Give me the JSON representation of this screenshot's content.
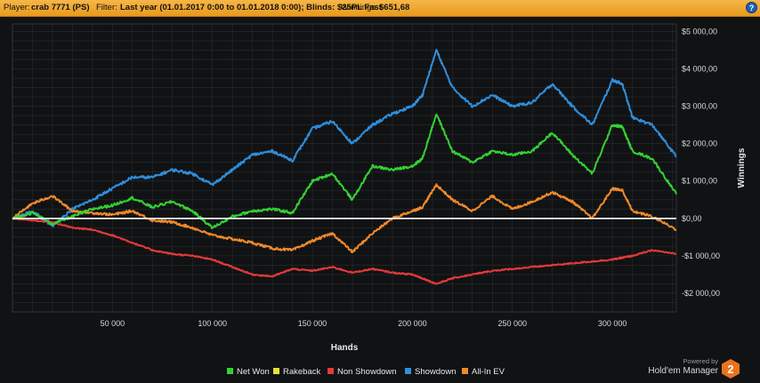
{
  "header": {
    "player_label": "Player:",
    "player_value": "crab 7771 (PS)",
    "filter_label": "Filter:",
    "filter_value": "Last year (01.01.2017 0:00 to 01.01.2018 0:00); Blinds: $25PL Fast",
    "winnings_label": "Winnings:",
    "winnings_value": "$651,68",
    "help_label": "?"
  },
  "branding": {
    "powered_by": "Powered by",
    "product": "Hold'em Manager",
    "logo_digit": "2"
  },
  "colors": {
    "background": "#111214",
    "grid": "#2a2c30",
    "zero_line": "#ffffff",
    "net_won": "#33d233",
    "rakeback": "#e8e033",
    "non_showdown": "#e53a3a",
    "showdown": "#2f8fdc",
    "all_in_ev": "#f08a2a"
  },
  "chart_data": {
    "type": "line",
    "xlabel": "Hands",
    "ylabel": "Winnings",
    "xlim": [
      0,
      332000
    ],
    "ylim": [
      -2500,
      5200
    ],
    "x_ticks": [
      50000,
      100000,
      150000,
      200000,
      250000,
      300000
    ],
    "x_tick_labels": [
      "50 000",
      "100 000",
      "150 000",
      "200 000",
      "250 000",
      "300 000"
    ],
    "y_ticks": [
      -2000,
      -1000,
      0,
      1000,
      2000,
      3000,
      4000,
      5000
    ],
    "y_tick_labels": [
      "-$2 000,00",
      "-$1 000,00",
      "$0,00",
      "$1 000,00",
      "$2 000,00",
      "$3 000,00",
      "$4 000,00",
      "$5 000,00"
    ],
    "grid": true,
    "legend_position": "bottom-center",
    "x": [
      0,
      10000,
      20000,
      30000,
      40000,
      50000,
      60000,
      70000,
      80000,
      90000,
      100000,
      110000,
      120000,
      130000,
      140000,
      150000,
      160000,
      170000,
      180000,
      190000,
      200000,
      205000,
      212000,
      220000,
      230000,
      240000,
      250000,
      260000,
      270000,
      280000,
      290000,
      300000,
      305000,
      310000,
      320000,
      332000
    ],
    "series": [
      {
        "name": "Net Won",
        "color_key": "net_won",
        "values": [
          0,
          150,
          -150,
          50,
          250,
          350,
          550,
          300,
          450,
          200,
          -250,
          50,
          200,
          250,
          150,
          1000,
          1200,
          500,
          1400,
          1300,
          1400,
          1600,
          2800,
          1800,
          1500,
          1800,
          1700,
          1800,
          2300,
          1700,
          1200,
          2500,
          2450,
          1800,
          1600,
          650
        ]
      },
      {
        "name": "Rakeback",
        "color_key": "rakeback",
        "values": [
          0,
          0,
          0,
          0,
          0,
          0,
          0,
          0,
          0,
          0,
          0,
          0,
          0,
          0,
          0,
          0,
          0,
          0,
          0,
          0,
          0,
          0,
          0,
          0,
          0,
          0,
          0,
          0,
          0,
          0,
          0,
          0,
          0,
          0,
          0,
          0
        ]
      },
      {
        "name": "Non Showdown",
        "color_key": "non_showdown",
        "values": [
          0,
          -50,
          -100,
          -250,
          -300,
          -450,
          -650,
          -850,
          -950,
          -1000,
          -1100,
          -1300,
          -1500,
          -1550,
          -1350,
          -1400,
          -1300,
          -1450,
          -1350,
          -1450,
          -1500,
          -1600,
          -1750,
          -1600,
          -1500,
          -1400,
          -1350,
          -1300,
          -1250,
          -1200,
          -1150,
          -1100,
          -1050,
          -1000,
          -850,
          -950
        ]
      },
      {
        "name": "Showdown",
        "color_key": "showdown",
        "values": [
          0,
          200,
          -200,
          250,
          500,
          800,
          1100,
          1100,
          1300,
          1200,
          900,
          1300,
          1700,
          1800,
          1550,
          2400,
          2600,
          2000,
          2500,
          2800,
          3000,
          3300,
          4500,
          3500,
          3000,
          3300,
          3000,
          3100,
          3600,
          3000,
          2500,
          3700,
          3600,
          2700,
          2500,
          1650
        ]
      },
      {
        "name": "All-In EV",
        "color_key": "all_in_ev",
        "values": [
          0,
          400,
          600,
          200,
          150,
          100,
          200,
          -50,
          -100,
          -250,
          -450,
          -550,
          -650,
          -800,
          -850,
          -600,
          -400,
          -900,
          -400,
          0,
          200,
          300,
          900,
          500,
          200,
          600,
          250,
          450,
          700,
          450,
          0,
          800,
          750,
          200,
          50,
          -300
        ]
      }
    ]
  }
}
